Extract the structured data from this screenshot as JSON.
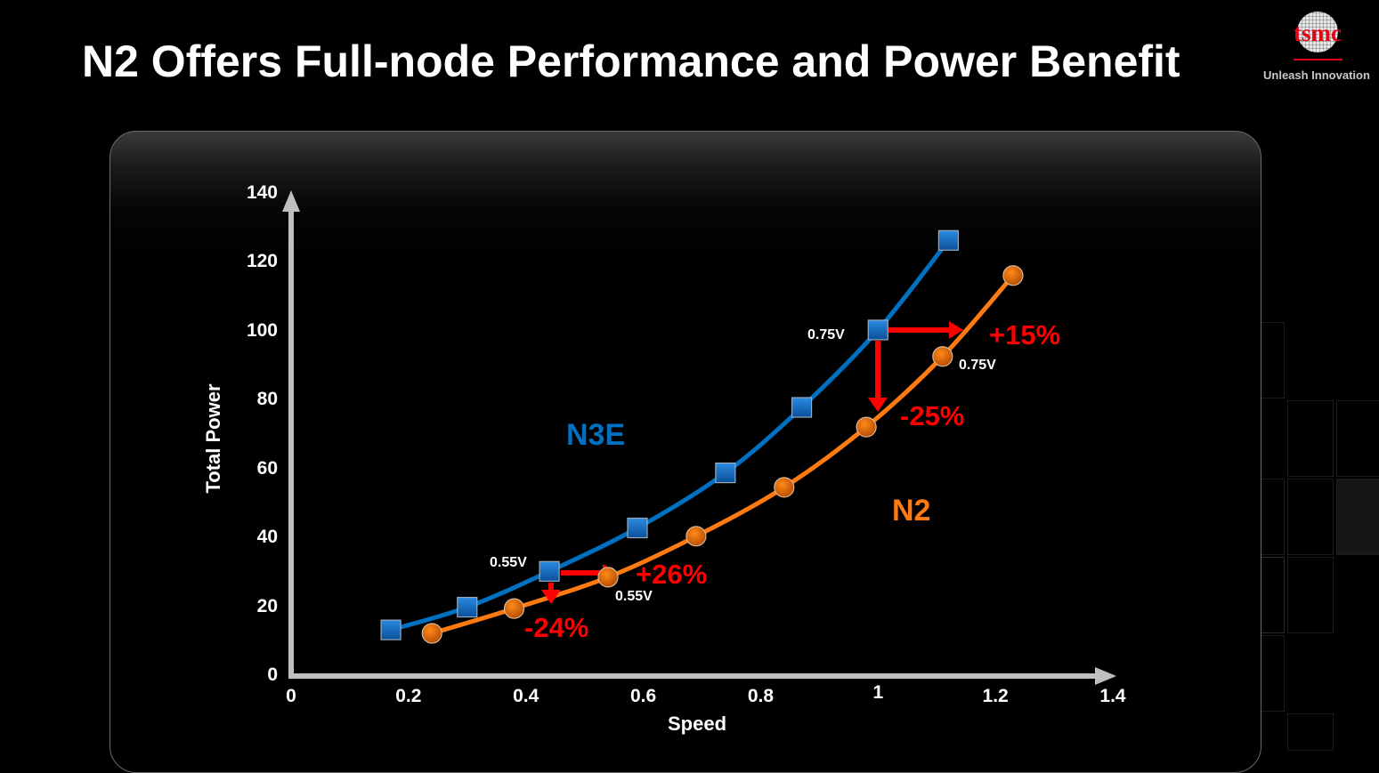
{
  "header": {
    "title": "N2 Offers Full-node Performance and Power Benefit",
    "logo_text": "tsmc",
    "logo_tagline": "Unleash Innovation"
  },
  "colors": {
    "n3e": "#0070c0",
    "n2": "#ff7a10",
    "annotation": "#ff0000",
    "axis": "#bfbfbf",
    "background": "#000000"
  },
  "chart_data": {
    "type": "line",
    "title": "N2 Offers Full-node Performance and Power Benefit",
    "xlabel": "Speed",
    "ylabel": "Total Power",
    "xlim": [
      0,
      1.4
    ],
    "ylim": [
      0,
      140
    ],
    "x_ticks": [
      "0",
      "0.2",
      "0.4",
      "0.6",
      "0.8",
      "1",
      "1.2",
      "1.4"
    ],
    "y_ticks": [
      "0",
      "20",
      "40",
      "60",
      "80",
      "100",
      "120",
      "140"
    ],
    "grid": false,
    "legend_position": "inline labels",
    "series": [
      {
        "name": "N3E",
        "marker": "square",
        "color": "#0070c0",
        "x": [
          0.17,
          0.3,
          0.44,
          0.59,
          0.74,
          0.87,
          1.0,
          1.12
        ],
        "y": [
          13.4,
          20.0,
          30.4,
          43.0,
          59.0,
          78.0,
          100.5,
          126.5
        ]
      },
      {
        "name": "N2",
        "marker": "circle",
        "color": "#ff7a10",
        "x": [
          0.24,
          0.38,
          0.54,
          0.69,
          0.84,
          0.98,
          1.11,
          1.23
        ],
        "y": [
          12.4,
          19.6,
          28.7,
          40.6,
          54.8,
          72.3,
          92.8,
          116.3
        ]
      }
    ],
    "annotations": [
      {
        "text": "0.55V",
        "target": "N3E",
        "x": 0.44,
        "y": 30.4
      },
      {
        "text": "0.55V",
        "target": "N2",
        "x": 0.54,
        "y": 28.7
      },
      {
        "text": "0.75V",
        "target": "N3E",
        "x": 1.0,
        "y": 100.5
      },
      {
        "text": "0.75V",
        "target": "N2",
        "x": 1.11,
        "y": 92.8
      },
      {
        "text": "+26%",
        "meaning": "speed gain at iso-power (low voltage)"
      },
      {
        "text": "-24%",
        "meaning": "power reduction at iso-speed (low voltage)"
      },
      {
        "text": "+15%",
        "meaning": "speed gain at iso-power (high voltage)"
      },
      {
        "text": "-25%",
        "meaning": "power reduction at iso-speed (high voltage)"
      }
    ]
  },
  "labels": {
    "series_n3e": "N3E",
    "series_n2": "N2",
    "v055_n3e": "0.55V",
    "v055_n2": "0.55V",
    "v075_n3e": "0.75V",
    "v075_n2": "0.75V",
    "pct_speed_low": "+26%",
    "pct_power_low": "-24%",
    "pct_speed_high": "+15%",
    "pct_power_high": "-25%",
    "xlabel": "Speed",
    "ylabel": "Total Power"
  }
}
